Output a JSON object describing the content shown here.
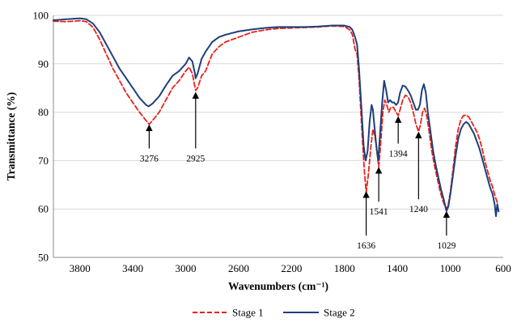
{
  "chart_data": {
    "type": "line",
    "title": "",
    "xlabel": "Wavenumbers (cm⁻¹)",
    "ylabel": "Transmittance (%)",
    "xlim": [
      4000,
      600
    ],
    "x_reversed": true,
    "ylim": [
      50,
      100
    ],
    "x_ticks": [
      3800,
      3400,
      3000,
      2600,
      2200,
      1800,
      1400,
      1000,
      600
    ],
    "y_ticks": [
      50,
      60,
      70,
      80,
      90,
      100
    ],
    "legend_position": "bottom",
    "series": [
      {
        "name": "Stage 1",
        "color": "#e8221c",
        "dash": "dashed",
        "points": [
          [
            4000,
            98.8
          ],
          [
            3900,
            98.7
          ],
          [
            3800,
            98.9
          ],
          [
            3750,
            98.7
          ],
          [
            3700,
            97.5
          ],
          [
            3650,
            95
          ],
          [
            3600,
            92
          ],
          [
            3550,
            89
          ],
          [
            3500,
            86.5
          ],
          [
            3450,
            84
          ],
          [
            3400,
            82
          ],
          [
            3350,
            80
          ],
          [
            3300,
            78.3
          ],
          [
            3276,
            77.5
          ],
          [
            3250,
            78.3
          ],
          [
            3200,
            80
          ],
          [
            3150,
            82.5
          ],
          [
            3100,
            85
          ],
          [
            3050,
            86.5
          ],
          [
            3000,
            88.5
          ],
          [
            2975,
            89.3
          ],
          [
            2950,
            88
          ],
          [
            2925,
            84.5
          ],
          [
            2910,
            85
          ],
          [
            2880,
            87.5
          ],
          [
            2850,
            88.5
          ],
          [
            2800,
            92
          ],
          [
            2750,
            93.5
          ],
          [
            2700,
            94.5
          ],
          [
            2600,
            95.5
          ],
          [
            2500,
            96.5
          ],
          [
            2400,
            97
          ],
          [
            2300,
            97.3
          ],
          [
            2200,
            97.4
          ],
          [
            2100,
            97.5
          ],
          [
            2000,
            97.6
          ],
          [
            1900,
            97.8
          ],
          [
            1800,
            97.7
          ],
          [
            1760,
            97
          ],
          [
            1740,
            96
          ],
          [
            1720,
            93
          ],
          [
            1705,
            92
          ],
          [
            1690,
            87
          ],
          [
            1670,
            77
          ],
          [
            1650,
            68
          ],
          [
            1636,
            63.5
          ],
          [
            1620,
            67
          ],
          [
            1600,
            73
          ],
          [
            1585,
            76.5
          ],
          [
            1570,
            75
          ],
          [
            1555,
            72
          ],
          [
            1541,
            68.7
          ],
          [
            1525,
            74
          ],
          [
            1510,
            80
          ],
          [
            1495,
            82.5
          ],
          [
            1480,
            81.5
          ],
          [
            1465,
            80
          ],
          [
            1450,
            81
          ],
          [
            1430,
            81
          ],
          [
            1410,
            80
          ],
          [
            1394,
            79.3
          ],
          [
            1380,
            80.5
          ],
          [
            1360,
            82.5
          ],
          [
            1340,
            83.5
          ],
          [
            1320,
            83.2
          ],
          [
            1300,
            82
          ],
          [
            1280,
            80
          ],
          [
            1260,
            77.5
          ],
          [
            1240,
            76
          ],
          [
            1225,
            77.5
          ],
          [
            1210,
            80
          ],
          [
            1195,
            80.8
          ],
          [
            1180,
            79.5
          ],
          [
            1160,
            76
          ],
          [
            1140,
            72
          ],
          [
            1120,
            69
          ],
          [
            1100,
            66.5
          ],
          [
            1080,
            64
          ],
          [
            1060,
            62
          ],
          [
            1040,
            60.5
          ],
          [
            1029,
            60
          ],
          [
            1015,
            61
          ],
          [
            1000,
            63.5
          ],
          [
            980,
            68
          ],
          [
            960,
            73
          ],
          [
            940,
            76.5
          ],
          [
            920,
            78.5
          ],
          [
            900,
            79.3
          ],
          [
            880,
            79.4
          ],
          [
            860,
            79
          ],
          [
            840,
            78
          ],
          [
            820,
            77
          ],
          [
            800,
            76
          ],
          [
            780,
            74.5
          ],
          [
            760,
            72.5
          ],
          [
            740,
            70
          ],
          [
            720,
            68
          ],
          [
            700,
            66
          ],
          [
            680,
            64.5
          ],
          [
            660,
            62.5
          ],
          [
            640,
            61
          ]
        ]
      },
      {
        "name": "Stage 2",
        "color": "#1f3f7a",
        "dash": "solid",
        "points": [
          [
            4000,
            99
          ],
          [
            3900,
            99.2
          ],
          [
            3800,
            99.4
          ],
          [
            3750,
            99.2
          ],
          [
            3700,
            98.3
          ],
          [
            3650,
            96.5
          ],
          [
            3600,
            94
          ],
          [
            3550,
            91.5
          ],
          [
            3500,
            89
          ],
          [
            3450,
            87
          ],
          [
            3400,
            85
          ],
          [
            3350,
            83
          ],
          [
            3300,
            81.5
          ],
          [
            3280,
            81.2
          ],
          [
            3250,
            81.8
          ],
          [
            3200,
            83.3
          ],
          [
            3150,
            85.5
          ],
          [
            3100,
            87.5
          ],
          [
            3050,
            88.5
          ],
          [
            3000,
            90
          ],
          [
            2975,
            91.3
          ],
          [
            2950,
            90.5
          ],
          [
            2930,
            88
          ],
          [
            2925,
            87
          ],
          [
            2910,
            88
          ],
          [
            2880,
            91
          ],
          [
            2850,
            92.5
          ],
          [
            2800,
            94.5
          ],
          [
            2750,
            95.5
          ],
          [
            2700,
            96
          ],
          [
            2600,
            96.7
          ],
          [
            2500,
            97.1
          ],
          [
            2400,
            97.4
          ],
          [
            2300,
            97.6
          ],
          [
            2200,
            97.6
          ],
          [
            2100,
            97.6
          ],
          [
            2000,
            97.7
          ],
          [
            1900,
            97.9
          ],
          [
            1800,
            97.9
          ],
          [
            1760,
            97.6
          ],
          [
            1740,
            97
          ],
          [
            1720,
            95.5
          ],
          [
            1705,
            94
          ],
          [
            1690,
            89
          ],
          [
            1670,
            80
          ],
          [
            1655,
            73
          ],
          [
            1640,
            70
          ],
          [
            1625,
            72
          ],
          [
            1610,
            78
          ],
          [
            1595,
            81.5
          ],
          [
            1585,
            80.5
          ],
          [
            1570,
            76
          ],
          [
            1555,
            72
          ],
          [
            1545,
            70
          ],
          [
            1530,
            76
          ],
          [
            1515,
            82
          ],
          [
            1500,
            86.5
          ],
          [
            1485,
            84.5
          ],
          [
            1470,
            82
          ],
          [
            1455,
            82.5
          ],
          [
            1440,
            82
          ],
          [
            1425,
            82
          ],
          [
            1410,
            81.5
          ],
          [
            1395,
            82
          ],
          [
            1380,
            84
          ],
          [
            1360,
            85.5
          ],
          [
            1340,
            85.3
          ],
          [
            1320,
            84.5
          ],
          [
            1300,
            83.5
          ],
          [
            1280,
            82
          ],
          [
            1260,
            80.5
          ],
          [
            1245,
            80.5
          ],
          [
            1230,
            81.5
          ],
          [
            1215,
            84.5
          ],
          [
            1200,
            85.8
          ],
          [
            1185,
            84
          ],
          [
            1170,
            80
          ],
          [
            1150,
            76
          ],
          [
            1130,
            72
          ],
          [
            1110,
            69
          ],
          [
            1090,
            66.5
          ],
          [
            1070,
            64
          ],
          [
            1050,
            62
          ],
          [
            1035,
            60.2
          ],
          [
            1029,
            59.6
          ],
          [
            1015,
            60.5
          ],
          [
            1000,
            63
          ],
          [
            980,
            67
          ],
          [
            960,
            71
          ],
          [
            940,
            74.5
          ],
          [
            920,
            76.5
          ],
          [
            900,
            77.5
          ],
          [
            880,
            78
          ],
          [
            860,
            77.5
          ],
          [
            840,
            76.5
          ],
          [
            820,
            75.5
          ],
          [
            800,
            74
          ],
          [
            780,
            72.5
          ],
          [
            760,
            70.5
          ],
          [
            740,
            68.5
          ],
          [
            720,
            66.5
          ],
          [
            700,
            64.5
          ],
          [
            680,
            63
          ],
          [
            665,
            61
          ],
          [
            655,
            58.5
          ],
          [
            645,
            61
          ],
          [
            635,
            59.5
          ]
        ]
      }
    ],
    "annotations": [
      {
        "label": "3276",
        "x": 3276,
        "arrow_from_y": 72.5,
        "arrow_to_y": 77.3,
        "label_y": 71.5,
        "label_anchor": "below"
      },
      {
        "label": "2925",
        "x": 2925,
        "arrow_from_y": 72.5,
        "arrow_to_y": 84.0,
        "label_y": 71.5,
        "label_anchor": "below"
      },
      {
        "label": "1636",
        "x": 1636,
        "arrow_from_y": 54.5,
        "arrow_to_y": 63.5,
        "label_y": 53.5,
        "label_anchor": "below"
      },
      {
        "label": "1541",
        "x": 1541,
        "arrow_from_y": 61.5,
        "arrow_to_y": 68.5,
        "label_y": 60.5,
        "label_anchor": "below"
      },
      {
        "label": "1394",
        "x": 1394,
        "arrow_from_y": 73.5,
        "arrow_to_y": 79.0,
        "label_y": 72.5,
        "label_anchor": "below"
      },
      {
        "label": "1240",
        "x": 1240,
        "arrow_from_y": 62.0,
        "arrow_to_y": 75.8,
        "label_y": 61.0,
        "label_anchor": "below"
      },
      {
        "label": "1029",
        "x": 1029,
        "arrow_from_y": 54.5,
        "arrow_to_y": 59.4,
        "label_y": 53.5,
        "label_anchor": "below"
      }
    ]
  }
}
